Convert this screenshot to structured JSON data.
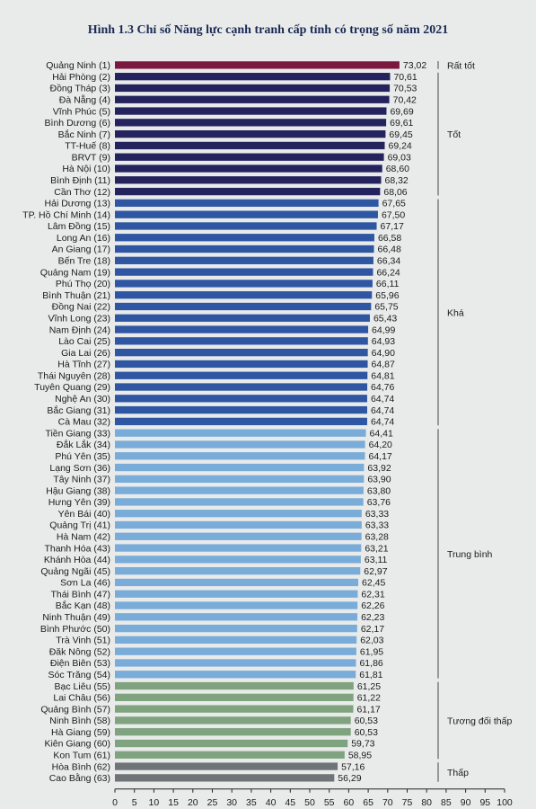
{
  "chart_data": {
    "type": "bar",
    "orientation": "horizontal",
    "title": "Hình 1.3 Chỉ số Năng lực cạnh tranh cấp tỉnh có trọng số năm 2021",
    "xlim": [
      0,
      100
    ],
    "xticks": [
      0,
      5,
      10,
      15,
      20,
      25,
      30,
      35,
      40,
      45,
      50,
      55,
      60,
      65,
      70,
      75,
      80,
      85,
      90,
      95,
      100
    ],
    "categories": [
      "Quảng Ninh (1)",
      "Hải Phòng (2)",
      "Đồng Tháp (3)",
      "Đà Nẵng (4)",
      "Vĩnh Phúc (5)",
      "Bình Dương (6)",
      "Bắc Ninh (7)",
      "TT-Huế (8)",
      "BRVT (9)",
      "Hà Nội (10)",
      "Bình Định (11)",
      "Cần Thơ (12)",
      "Hải Dương (13)",
      "TP. Hồ Chí Minh (14)",
      "Lâm Đồng (15)",
      "Long An (16)",
      "An Giang (17)",
      "Bến Tre (18)",
      "Quảng Nam (19)",
      "Phú Thọ (20)",
      "Bình Thuận (21)",
      "Đồng Nai (22)",
      "Vĩnh Long (23)",
      "Nam Định (24)",
      "Lào Cai (25)",
      "Gia Lai (26)",
      "Hà Tĩnh (27)",
      "Thái Nguyên (28)",
      "Tuyên Quang (29)",
      "Nghệ An (30)",
      "Bắc Giang (31)",
      "Cà Mau (32)",
      "Tiền Giang (33)",
      "Đắk Lắk (34)",
      "Phú Yên (35)",
      "Lạng Sơn (36)",
      "Tây Ninh (37)",
      "Hậu Giang (38)",
      "Hưng Yên (39)",
      "Yên Bái (40)",
      "Quảng Trị (41)",
      "Hà Nam (42)",
      "Thanh Hóa (43)",
      "Khánh Hòa (44)",
      "Quảng Ngãi (45)",
      "Sơn La (46)",
      "Thái Bình (47)",
      "Bắc Kạn (48)",
      "Ninh Thuận (49)",
      "Bình Phước (50)",
      "Trà Vinh (51)",
      "Đăk Nông (52)",
      "Điện Biên (53)",
      "Sóc Trăng (54)",
      "Bạc Liêu (55)",
      "Lai Châu (56)",
      "Quảng Bình (57)",
      "Ninh Bình (58)",
      "Hà Giang (59)",
      "Kiên Giang (60)",
      "Kon Tum (61)",
      "Hòa Bình (62)",
      "Cao Bằng (63)"
    ],
    "values": [
      73.02,
      70.61,
      70.53,
      70.42,
      69.69,
      69.61,
      69.45,
      69.24,
      69.03,
      68.6,
      68.32,
      68.06,
      67.65,
      67.5,
      67.17,
      66.58,
      66.48,
      66.34,
      66.24,
      66.11,
      65.96,
      65.75,
      65.43,
      64.99,
      64.93,
      64.9,
      64.87,
      64.81,
      64.76,
      64.74,
      64.74,
      64.74,
      64.41,
      64.2,
      64.17,
      63.92,
      63.9,
      63.8,
      63.76,
      63.33,
      63.33,
      63.28,
      63.21,
      63.11,
      62.97,
      62.45,
      62.31,
      62.26,
      62.23,
      62.17,
      62.03,
      61.95,
      61.86,
      61.81,
      61.25,
      61.22,
      61.17,
      60.53,
      60.53,
      59.73,
      58.95,
      57.16,
      56.29
    ],
    "value_labels": [
      "73,02",
      "70,61",
      "70,53",
      "70,42",
      "69,69",
      "69,61",
      "69,45",
      "69,24",
      "69,03",
      "68,60",
      "68,32",
      "68,06",
      "67,65",
      "67,50",
      "67,17",
      "66,58",
      "66,48",
      "66,34",
      "66,24",
      "66,11",
      "65,96",
      "65,75",
      "65,43",
      "64,99",
      "64,93",
      "64,90",
      "64,87",
      "64,81",
      "64,76",
      "64,74",
      "64,74",
      "64,74",
      "64,41",
      "64,20",
      "64,17",
      "63,92",
      "63,90",
      "63,80",
      "63,76",
      "63,33",
      "63,33",
      "63,28",
      "63,21",
      "63,11",
      "62,97",
      "62,45",
      "62,31",
      "62,26",
      "62,23",
      "62,17",
      "62,03",
      "61,95",
      "61,86",
      "61,81",
      "61,25",
      "61,22",
      "61,17",
      "60,53",
      "60,53",
      "59,73",
      "58,95",
      "57,16",
      "56,29"
    ],
    "groups": [
      {
        "label": "Rất tốt",
        "start": 0,
        "end": 0,
        "color": "#7a1840"
      },
      {
        "label": "Tốt",
        "start": 1,
        "end": 11,
        "color": "#24235e"
      },
      {
        "label": "Khá",
        "start": 12,
        "end": 31,
        "color": "#2f56a3"
      },
      {
        "label": "Trung bình",
        "start": 32,
        "end": 53,
        "color": "#79acd8"
      },
      {
        "label": "Tương đối thấp",
        "start": 54,
        "end": 60,
        "color": "#7fa37e"
      },
      {
        "label": "Thấp",
        "start": 61,
        "end": 62,
        "color": "#6f7478"
      }
    ]
  }
}
